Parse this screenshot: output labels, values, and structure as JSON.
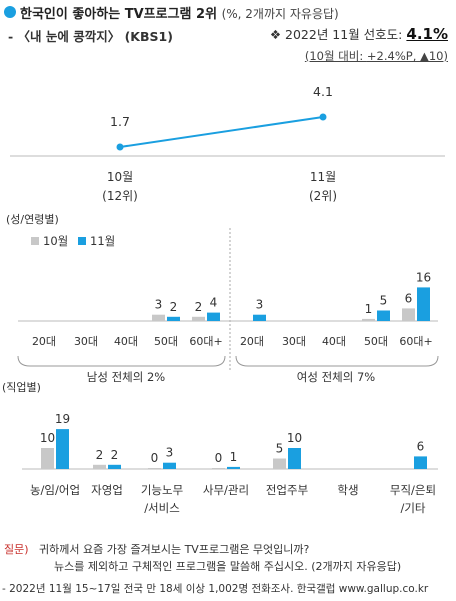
{
  "header": {
    "title": "한국인이 좋아하는 TV프로그램 2위",
    "title_paren": "(%, 2개까지 자유응답)",
    "subtitle": "- 〈내 눈에 콩깍지〉 (KBS1)",
    "pref_bullet": "❖",
    "pref_label": "2022년 11월 선호도:",
    "pref_value": "4.1%",
    "change_prefix": "(10월 대비: ",
    "change_text": "+2.4%P, ▲10",
    "change_suffix": ")"
  },
  "colors": {
    "oct": "#c8c8c8",
    "nov": "#1a9fe0",
    "line": "#1a9fe0",
    "text": "#333333",
    "accent_red": "#c8302c"
  },
  "chart_data": [
    {
      "type": "line",
      "categories": [
        "10월\n(12위)",
        "11월\n(2위)"
      ],
      "series": [
        {
          "values": [
            1.7,
            4.1
          ]
        }
      ]
    },
    {
      "type": "bar",
      "label": "(성/연령별)",
      "legend": [
        "10월",
        "11월"
      ],
      "groups": [
        {
          "label": "남성 전체의 2%",
          "categories": [
            "20대",
            "30대",
            "40대",
            "50대",
            "60대+"
          ]
        },
        {
          "label": "여성 전체의 7%",
          "categories": [
            "20대",
            "30대",
            "40대",
            "50대",
            "60대+"
          ]
        }
      ],
      "series": [
        {
          "name": "10월",
          "values": [
            null,
            null,
            null,
            3,
            2,
            null,
            null,
            null,
            1,
            6
          ]
        },
        {
          "name": "11월",
          "values": [
            null,
            null,
            null,
            2,
            4,
            3,
            null,
            null,
            5,
            16
          ]
        }
      ]
    },
    {
      "type": "bar",
      "label": "(직업별)",
      "categories": [
        "농/임/어업",
        "자영업",
        "기능노무\n/서비스",
        "사무/관리",
        "전업주부",
        "학생",
        "무직/은퇴\n/기타"
      ],
      "series": [
        {
          "name": "10월",
          "values": [
            10,
            2,
            0,
            0,
            5,
            null,
            null
          ]
        },
        {
          "name": "11월",
          "values": [
            19,
            2,
            3,
            1,
            10,
            null,
            6
          ]
        }
      ]
    }
  ],
  "footer": {
    "question_label": "질문)",
    "question_line1": "귀하께서 요즘 가장 즐겨보시는 TV프로그램은 무엇입니까?",
    "question_line2": "뉴스를 제외하고 구체적인 프로그램을 말씀해 주십시오. (2개까지 자유응답)",
    "source": "- 2022년 11월 15~17일 전국 만 18세 이상 1,002명 전화조사. 한국갤럽 www.gallup.co.kr"
  }
}
